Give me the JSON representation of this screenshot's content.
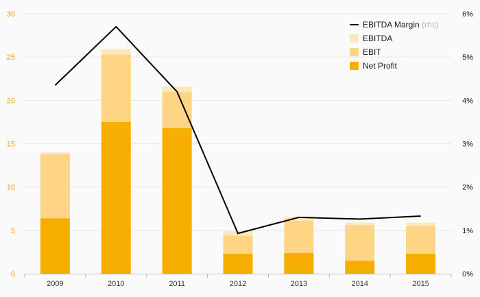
{
  "chart_data": {
    "type": "bar",
    "title": "",
    "xlabel": "",
    "ylabel": "",
    "categories": [
      "2009",
      "2010",
      "2011",
      "2012",
      "2013",
      "2014",
      "2015"
    ],
    "series": [
      {
        "name": "Net Profit",
        "kind": "stacked-bar",
        "axis": "left",
        "color": "#f7ae00",
        "values": [
          6.4,
          17.5,
          16.8,
          2.3,
          2.4,
          1.5,
          2.3
        ]
      },
      {
        "name": "EBIT",
        "kind": "stacked-bar",
        "axis": "left",
        "color": "#fdd584",
        "values": [
          7.4,
          7.8,
          4.2,
          2.1,
          3.7,
          4.1,
          3.2
        ]
      },
      {
        "name": "EBITDA",
        "kind": "stacked-bar",
        "axis": "left",
        "color": "#fde8bb",
        "values": [
          0.2,
          0.6,
          0.6,
          0.5,
          0.5,
          0.3,
          0.4
        ]
      },
      {
        "name": "EBITDA Margin",
        "kind": "line",
        "axis": "right",
        "color": "#000000",
        "values": [
          4.35,
          5.7,
          4.2,
          0.93,
          1.3,
          1.26,
          1.33
        ]
      }
    ],
    "left_axis": {
      "ylim": [
        0,
        30
      ],
      "ticks": [
        0,
        5,
        10,
        15,
        20,
        25,
        30
      ],
      "tick_labels": [
        "0",
        "5",
        "10",
        "15",
        "20",
        "25",
        "30"
      ],
      "color": "#f0a500"
    },
    "right_axis": {
      "ylim": [
        0,
        6
      ],
      "ticks": [
        0,
        1,
        2,
        3,
        4,
        5,
        6
      ],
      "tick_labels": [
        "0%",
        "1%",
        "2%",
        "3%",
        "4%",
        "5%",
        "6%"
      ],
      "color": "#1a1a1a"
    },
    "grid": true,
    "legend": {
      "placement": "top-right",
      "entries": [
        {
          "label": "EBITDA Margin",
          "note": "(rhs)",
          "swatch": "line",
          "color": "#000000"
        },
        {
          "label": "EBITDA",
          "note": "",
          "swatch": "box",
          "color": "#fde8bb"
        },
        {
          "label": "EBIT",
          "note": "",
          "swatch": "box",
          "color": "#fdd584"
        },
        {
          "label": "Net Profit",
          "note": "",
          "swatch": "box",
          "color": "#f7ae00"
        }
      ]
    }
  }
}
